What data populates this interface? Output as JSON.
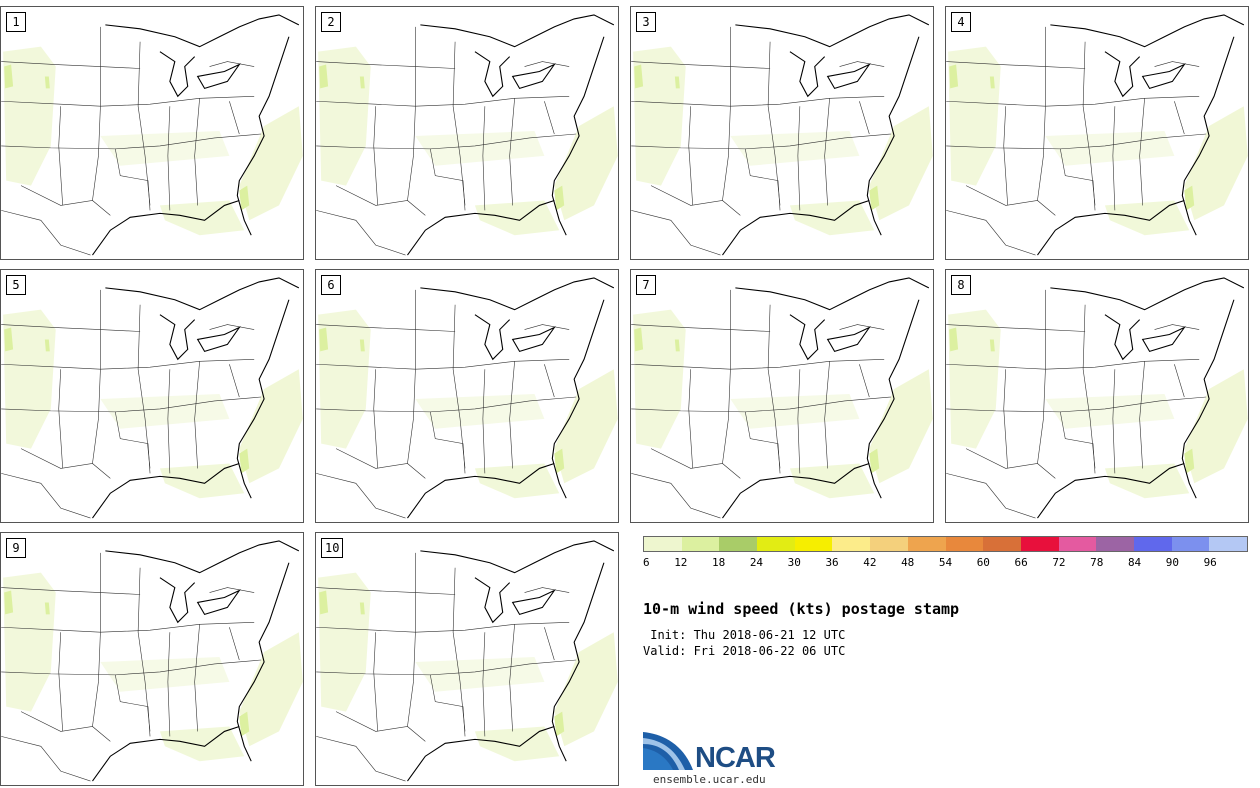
{
  "panels": [
    {
      "label": "1"
    },
    {
      "label": "2"
    },
    {
      "label": "3"
    },
    {
      "label": "4"
    },
    {
      "label": "5"
    },
    {
      "label": "6"
    },
    {
      "label": "7"
    },
    {
      "label": "8"
    },
    {
      "label": "9"
    },
    {
      "label": "10"
    }
  ],
  "colorbar": {
    "colors": [
      "#eef6cf",
      "#dcf0a0",
      "#a9cc68",
      "#e2ec14",
      "#f6ee00",
      "#fcec8a",
      "#f4d07c",
      "#eea44e",
      "#e8883c",
      "#d87038",
      "#e8103c",
      "#e45aa0",
      "#9c64a4",
      "#6068ec",
      "#7c90ee",
      "#b4c8f4"
    ],
    "ticks": [
      "6",
      "12",
      "18",
      "24",
      "30",
      "36",
      "42",
      "48",
      "54",
      "60",
      "66",
      "72",
      "78",
      "84",
      "90",
      "96"
    ]
  },
  "title": "10-m wind speed (kts) postage stamp",
  "init": " Init: Thu 2018-06-21 12 UTC",
  "valid": "Valid: Fri 2018-06-22 06 UTC",
  "logo": {
    "name": "NCAR",
    "url": "ensemble.ucar.edu"
  }
}
